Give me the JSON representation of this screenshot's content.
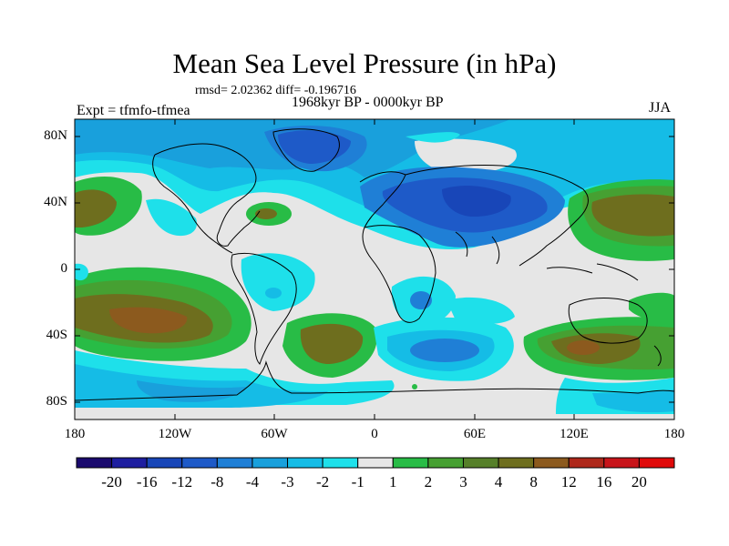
{
  "title": "Mean Sea Level Pressure (in hPa)",
  "stats_line": "rmsd= 2.02362 diff= -0.196716",
  "period": "1968kyr BP - 0000kyr BP",
  "experiment": "Expt = tfmfo-tfmea",
  "season": "JJA",
  "lat_labels": [
    "80N",
    "40N",
    "0",
    "40S",
    "80S"
  ],
  "lon_labels": [
    "180",
    "120W",
    "60W",
    "0",
    "60E",
    "120E",
    "180"
  ],
  "colorbar": {
    "labels": [
      "-20",
      "-16",
      "-12",
      "-8",
      "-4",
      "-3",
      "-2",
      "-1",
      "1",
      "2",
      "3",
      "4",
      "8",
      "12",
      "16",
      "20"
    ],
    "colors": [
      "#1a0a6e",
      "#1e1ea0",
      "#1846b8",
      "#1e5ac8",
      "#1f7fd6",
      "#19a0dc",
      "#15bce6",
      "#1ee0ea",
      "#e6e6e6",
      "#28bc46",
      "#46a032",
      "#56802a",
      "#6e6e1e",
      "#8c5a1e",
      "#ae281a",
      "#c8141a",
      "#e00a0a"
    ]
  }
}
